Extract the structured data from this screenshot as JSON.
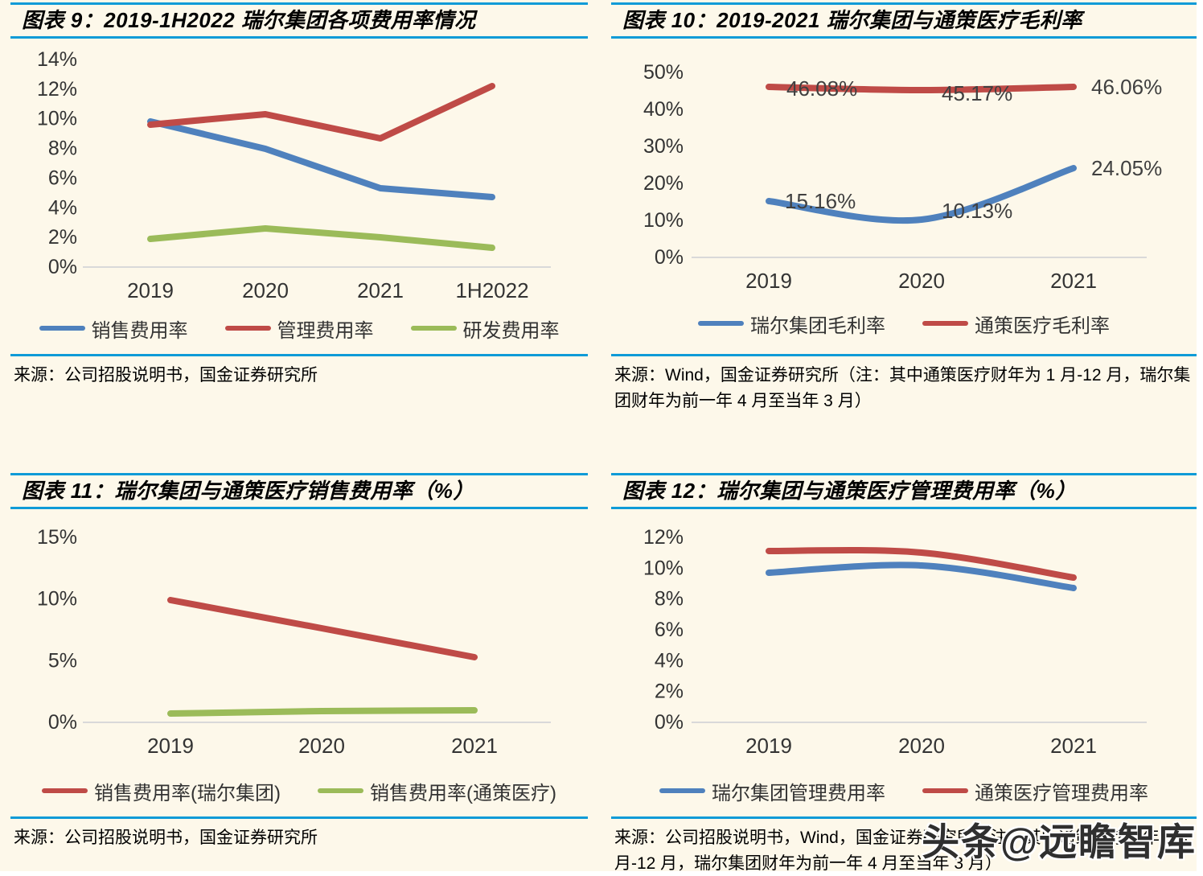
{
  "page": {
    "background": "#FFFFFF",
    "panel_background": "#FDF8EA",
    "accent_blue": "#0F9BD7",
    "watermark_text": "头条@远瞻智库"
  },
  "chart_data": [
    {
      "id": "fig9",
      "type": "line",
      "title": "图表 9：2019-1H2022 瑞尔集团各项费用率情况",
      "categories": [
        "2019",
        "2020",
        "2021",
        "1H2022"
      ],
      "series": [
        {
          "name": "销售费用率",
          "color": "#4F81BD",
          "values": [
            9.8,
            8.0,
            5.3,
            4.7
          ]
        },
        {
          "name": "管理费用率",
          "color": "#BF4B47",
          "values": [
            9.6,
            10.3,
            8.7,
            12.2
          ]
        },
        {
          "name": "研发费用率",
          "color": "#9BBB59",
          "values": [
            1.9,
            2.6,
            2.0,
            1.3
          ]
        }
      ],
      "ylim": [
        0,
        14
      ],
      "ytick_step": 2,
      "ytick_suffix": "%",
      "grid": false,
      "legend_position": "bottom",
      "source": "来源：公司招股说明书，国金证券研究所"
    },
    {
      "id": "fig10",
      "type": "line",
      "title": "图表 10：2019-2021 瑞尔集团与通策医疗毛利率",
      "categories": [
        "2019",
        "2020",
        "2021"
      ],
      "series": [
        {
          "name": "瑞尔集团毛利率",
          "color": "#4F81BD",
          "values": [
            15.16,
            10.13,
            24.05
          ],
          "show_point_labels": true
        },
        {
          "name": "通策医疗毛利率",
          "color": "#BF4B47",
          "values": [
            46.08,
            45.17,
            46.06
          ],
          "show_point_labels": true
        }
      ],
      "ylim": [
        0,
        50
      ],
      "ytick_step": 10,
      "ytick_suffix": "%",
      "grid": false,
      "legend_position": "bottom",
      "source": "来源：Wind，国金证券研究所（注：其中通策医疗财年为 1 月-12 月，瑞尔集团财年为前一年 4 月至当年 3 月）"
    },
    {
      "id": "fig11",
      "type": "line",
      "title": "图表 11：瑞尔集团与通策医疗销售费用率（%）",
      "categories": [
        "2019",
        "2020",
        "2021"
      ],
      "series": [
        {
          "name": "销售费用率(瑞尔集团)",
          "color": "#BF4B47",
          "values": [
            9.9,
            7.6,
            5.3
          ]
        },
        {
          "name": "销售费用率(通策医疗)",
          "color": "#9BBB59",
          "values": [
            0.7,
            0.9,
            1.0
          ]
        }
      ],
      "ylim": [
        0,
        15
      ],
      "ytick_step": 5,
      "ytick_suffix": "%",
      "grid": false,
      "legend_position": "bottom",
      "source": "来源：公司招股说明书，国金证券研究所"
    },
    {
      "id": "fig12",
      "type": "line",
      "title": "图表 12：瑞尔集团与通策医疗管理费用率（%）",
      "categories": [
        "2019",
        "2020",
        "2021"
      ],
      "series": [
        {
          "name": "瑞尔集团管理费用率",
          "color": "#4F81BD",
          "values": [
            9.7,
            10.2,
            8.7
          ]
        },
        {
          "name": "通策医疗管理费用率",
          "color": "#BF4B47",
          "values": [
            11.1,
            11.0,
            9.4
          ]
        }
      ],
      "ylim": [
        0,
        12
      ],
      "ytick_step": 2,
      "ytick_suffix": "%",
      "grid": false,
      "legend_position": "bottom",
      "source": "来源：公司招股说明书，Wind，国金证券研究所（注：其中通策医疗财年为 1 月-12 月，瑞尔集团财年为前一年 4 月至当年 3 月）"
    }
  ]
}
